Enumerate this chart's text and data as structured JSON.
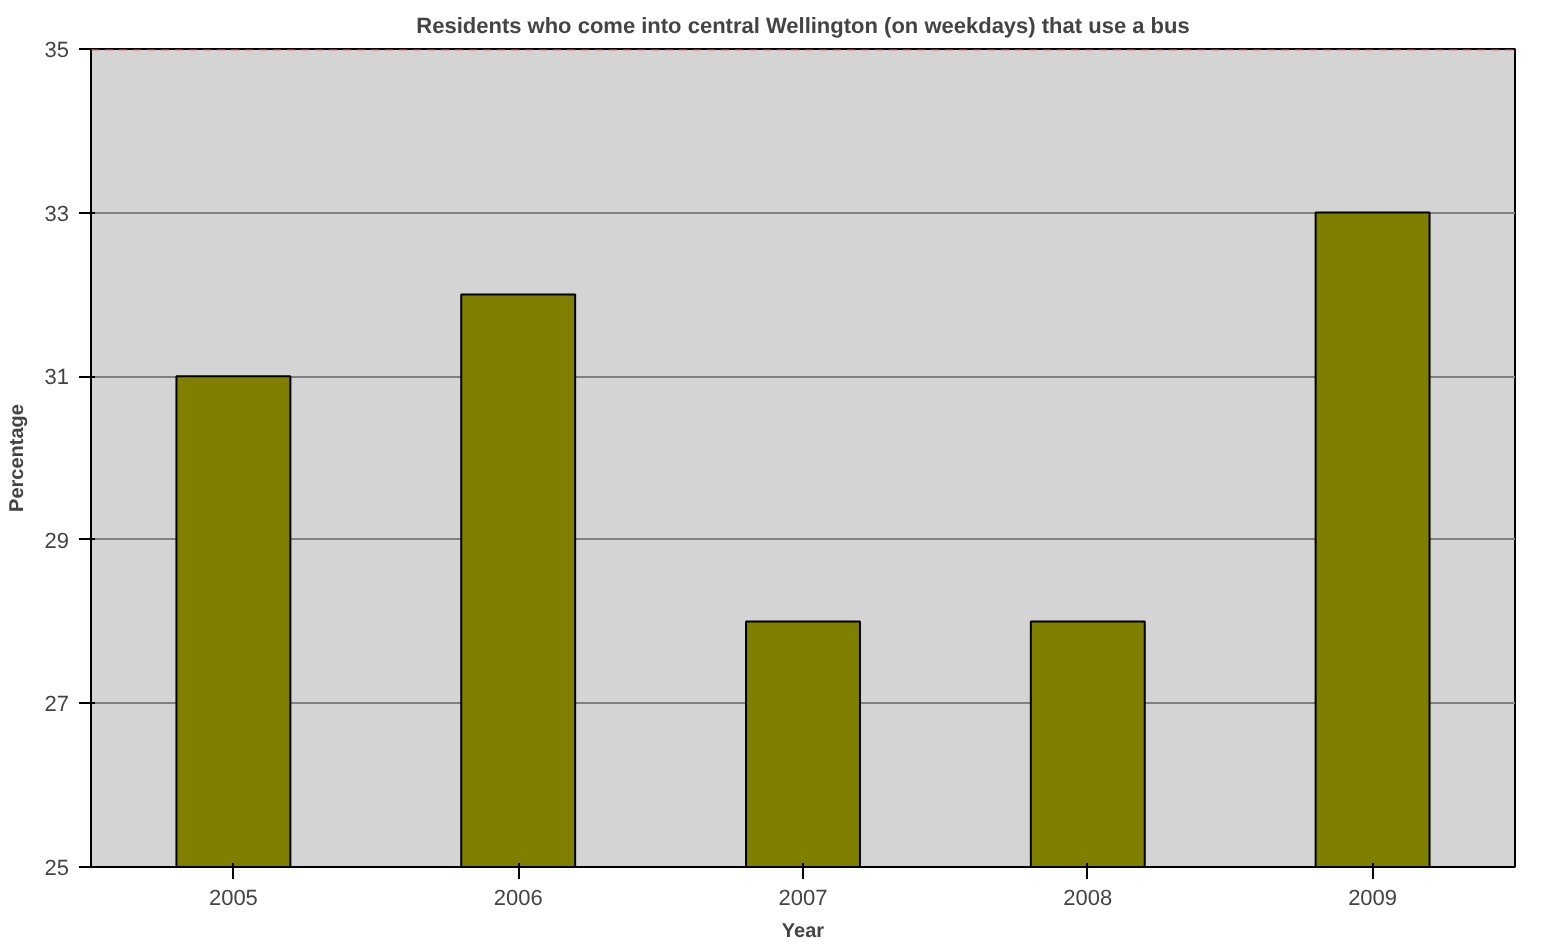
{
  "chart_data": {
    "type": "bar",
    "title": "Residents who come into central Wellington (on weekdays) that use a bus",
    "xlabel": "Year",
    "ylabel": "Percentage",
    "categories": [
      "2005",
      "2006",
      "2007",
      "2008",
      "2009"
    ],
    "values": [
      31,
      32,
      28,
      28,
      33
    ],
    "color": "#808000",
    "ylim": [
      25,
      35
    ],
    "yticks": [
      25,
      27,
      29,
      31,
      33,
      35
    ],
    "grid": "y",
    "ref_lines": [
      {
        "axis": "y",
        "value": 35,
        "color": "#ff0000",
        "line_style": "dashed"
      }
    ]
  }
}
